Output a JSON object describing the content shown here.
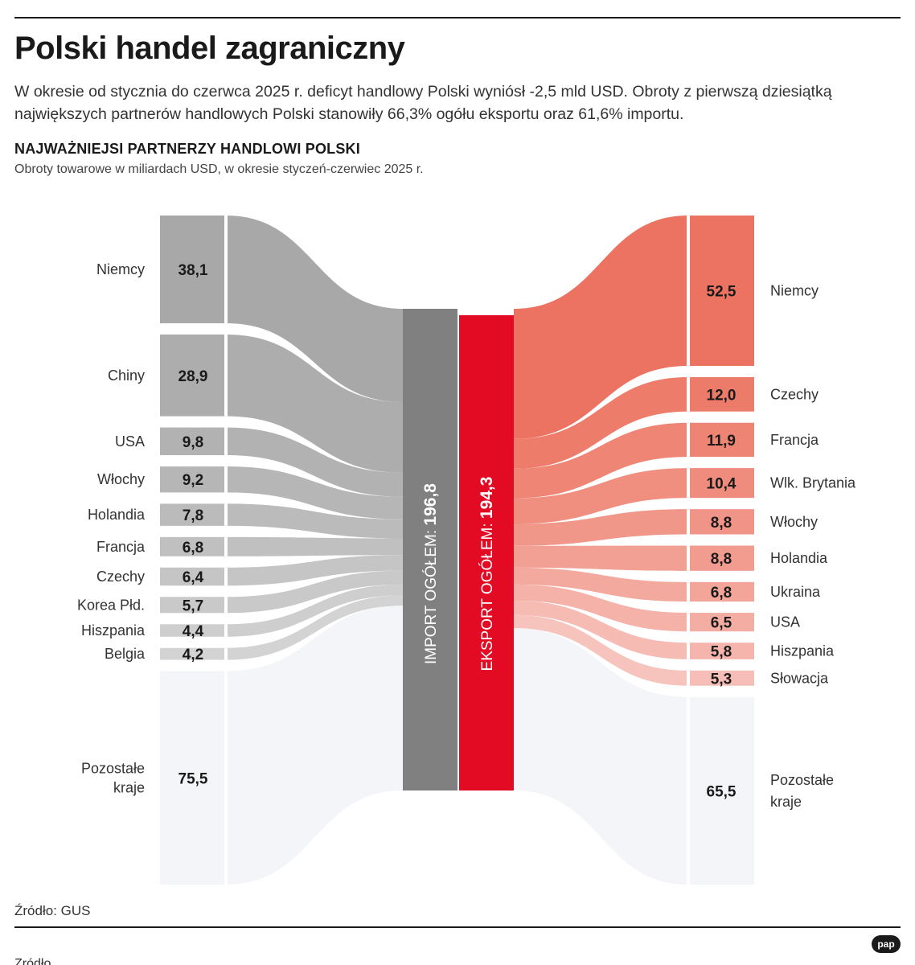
{
  "title": "Polski handel zagraniczny",
  "lead": "W okresie od stycznia do czerwca 2025 r. deficyt handlowy Polski wyniósł -2,5 mld USD. Obroty z pierwszą dziesiątką największych partnerów handlowych Polski stanowiły 66,3% ogółu eksportu oraz 61,6% importu.",
  "heading": "NAJWAŻNIEJSI PARTNERZY HANDLOWI POLSKI",
  "subheading": "Obroty towarowe w miliardach USD, w okresie styczeń-czerwiec 2025 r.",
  "source": "Źródło: GUS",
  "footer_cut": "Źródło",
  "logo_text": "pap",
  "colors": {
    "import_total": "#808080",
    "export_total": "#e30a24",
    "import_flow_light": "#d3d3d3",
    "import_flow_dark": "#a8a8a8",
    "export_flow_dark": "#ec7361",
    "export_flow_light": "#f7c4bd",
    "other": "#f4f5f8"
  },
  "chart_data": {
    "type": "sankey",
    "unit": "mld USD",
    "import": {
      "total_label": "IMPORT OGÓŁEM:",
      "total_value_label": "196,8",
      "total": 196.8,
      "partners": [
        {
          "name": "Niemcy",
          "value": 38.1,
          "label": "38,1"
        },
        {
          "name": "Chiny",
          "value": 28.9,
          "label": "28,9"
        },
        {
          "name": "USA",
          "value": 9.8,
          "label": "9,8"
        },
        {
          "name": "Włochy",
          "value": 9.2,
          "label": "9,2"
        },
        {
          "name": "Holandia",
          "value": 7.8,
          "label": "7,8"
        },
        {
          "name": "Francja",
          "value": 6.8,
          "label": "6,8"
        },
        {
          "name": "Czechy",
          "value": 6.4,
          "label": "6,4"
        },
        {
          "name": "Korea Płd.",
          "value": 5.7,
          "label": "5,7"
        },
        {
          "name": "Hiszpania",
          "value": 4.4,
          "label": "4,4"
        },
        {
          "name": "Belgia",
          "value": 4.2,
          "label": "4,2"
        },
        {
          "name": "Pozostałe kraje",
          "value": 75.5,
          "label": "75,5",
          "other": true
        }
      ]
    },
    "export": {
      "total_label": "EKSPORT OGÓŁEM:",
      "total_value_label": "194,3",
      "total": 194.3,
      "partners": [
        {
          "name": "Niemcy",
          "value": 52.5,
          "label": "52,5"
        },
        {
          "name": "Czechy",
          "value": 12.0,
          "label": "12,0"
        },
        {
          "name": "Francja",
          "value": 11.9,
          "label": "11,9"
        },
        {
          "name": "Wlk. Brytania",
          "value": 10.4,
          "label": "10,4"
        },
        {
          "name": "Włochy",
          "value": 8.8,
          "label": "8,8"
        },
        {
          "name": "Holandia",
          "value": 8.8,
          "label": "8,8"
        },
        {
          "name": "Ukraina",
          "value": 6.8,
          "label": "6,8"
        },
        {
          "name": "USA",
          "value": 6.5,
          "label": "6,5"
        },
        {
          "name": "Hiszpania",
          "value": 5.8,
          "label": "5,8"
        },
        {
          "name": "Słowacja",
          "value": 5.3,
          "label": "5,3"
        },
        {
          "name": "Pozostałe kraje",
          "value": 65.5,
          "label": "65,5",
          "other": true
        }
      ]
    }
  }
}
